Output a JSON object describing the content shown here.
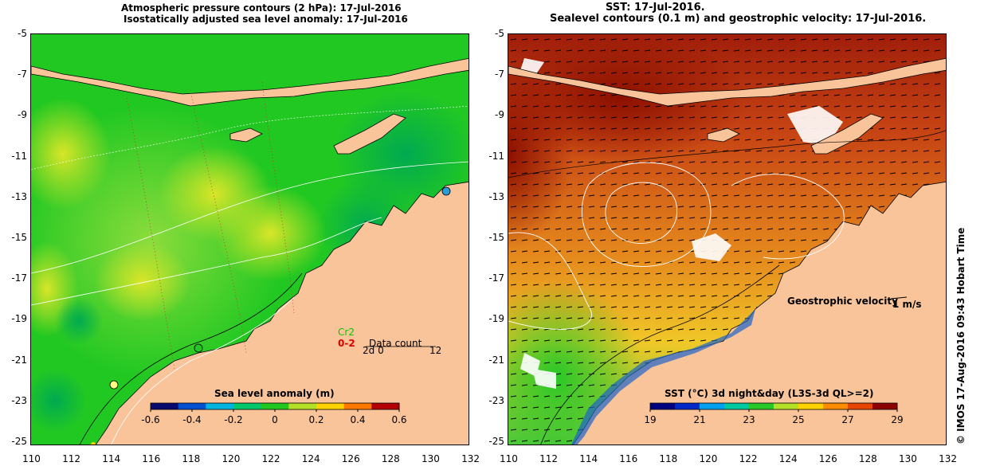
{
  "left": {
    "title_line1": "Atmospheric pressure contours (2 hPa): 17-Jul-2016",
    "title_line2": "Isostatically adjusted sea level anomaly: 17-Jul-2016",
    "colorbar_label": "Sea level anomaly (m)",
    "colorbar_ticks": [
      "-0.6",
      "-0.4",
      "-0.2",
      "0",
      "0.2",
      "0.4",
      "0.6"
    ],
    "colorbar_colors": [
      "#0a0a6e",
      "#0050d0",
      "#00b4e0",
      "#00c86a",
      "#22c822",
      "#b4e028",
      "#ffd200",
      "#ff7800",
      "#b40000"
    ],
    "station_label": "Cr2",
    "data_count_red": "0-2",
    "data_count_title": "Data count",
    "data_count_ticks": [
      "2d 0",
      "12"
    ]
  },
  "right": {
    "title_line1": "SST: 17-Jul-2016.",
    "title_line2": "Sealevel contours (0.1 m) and geostrophic velocity: 17-Jul-2016.",
    "geostrophic_label": "Geostrophic velocity",
    "velocity_scale": "1 m/s",
    "colorbar_label": "SST (°C) 3d night&day (L3S-3d QL>=2)",
    "colorbar_ticks": [
      "19",
      "21",
      "23",
      "25",
      "27",
      "29"
    ],
    "colorbar_colors": [
      "#000080",
      "#0028c8",
      "#00a0f0",
      "#00c8a0",
      "#28c828",
      "#b4e028",
      "#ffd200",
      "#ff8c00",
      "#e64600",
      "#8c0000"
    ]
  },
  "axes": {
    "lat_ticks": [
      "-5",
      "-7",
      "-9",
      "-11",
      "-13",
      "-15",
      "-17",
      "-19",
      "-21",
      "-23",
      "-25"
    ],
    "lon_ticks": [
      "110",
      "112",
      "114",
      "116",
      "118",
      "120",
      "122",
      "124",
      "126",
      "128",
      "130",
      "132"
    ]
  },
  "credit": "© IMOS 17-Aug-2016 09:43 Hobart Time",
  "colors": {
    "land": "#f9c49a",
    "sla_base": "#22c822",
    "sst_base": "#d26414"
  }
}
